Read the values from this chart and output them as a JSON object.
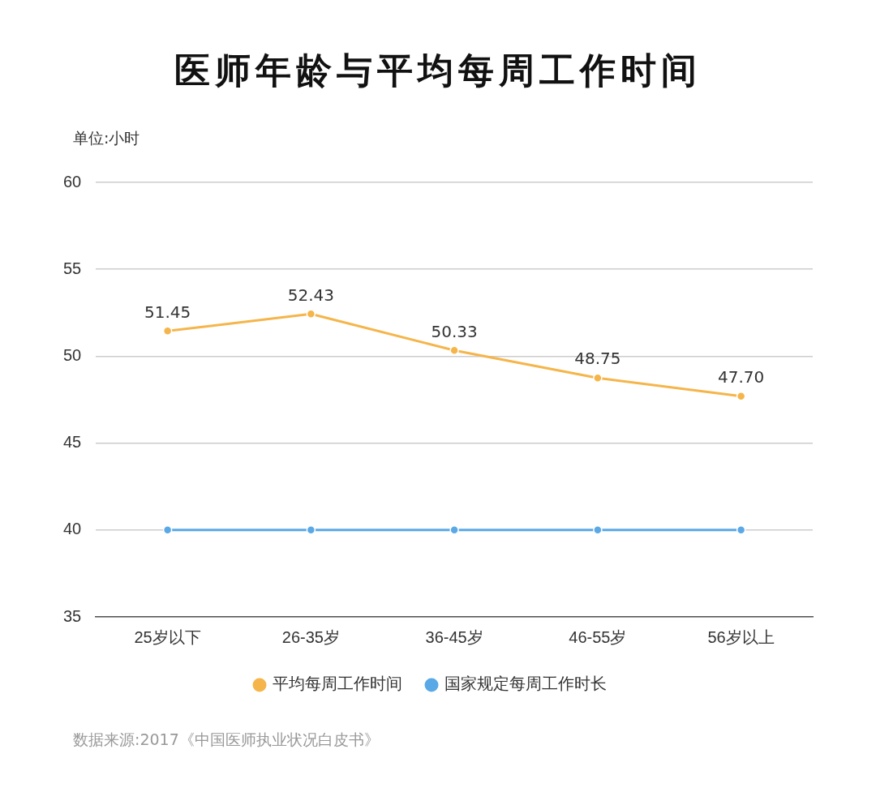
{
  "chart_data": {
    "type": "line",
    "title": "医师年龄与平均每周工作时间",
    "ylabel": "单位:小时",
    "categories": [
      "25岁以下",
      "26-35岁",
      "36-45岁",
      "46-55岁",
      "56岁以上"
    ],
    "series": [
      {
        "name": "平均每周工作时间",
        "color": "#f5b54a",
        "values": [
          51.45,
          52.43,
          50.33,
          48.75,
          47.7
        ],
        "value_labels": [
          "51.45",
          "52.43",
          "50.33",
          "48.75",
          "47.70"
        ]
      },
      {
        "name": "国家规定每周工作时长",
        "color": "#5aa9e6",
        "values": [
          40,
          40,
          40,
          40,
          40
        ]
      }
    ],
    "ylim": [
      35,
      60
    ],
    "yticks": [
      35,
      40,
      45,
      50,
      55,
      60
    ],
    "grid": "y",
    "legend": "bottom",
    "marker": "circle",
    "line_style": "solid",
    "annotations": [
      "数据来源:2017《中国医师执业状况白皮书》"
    ]
  }
}
